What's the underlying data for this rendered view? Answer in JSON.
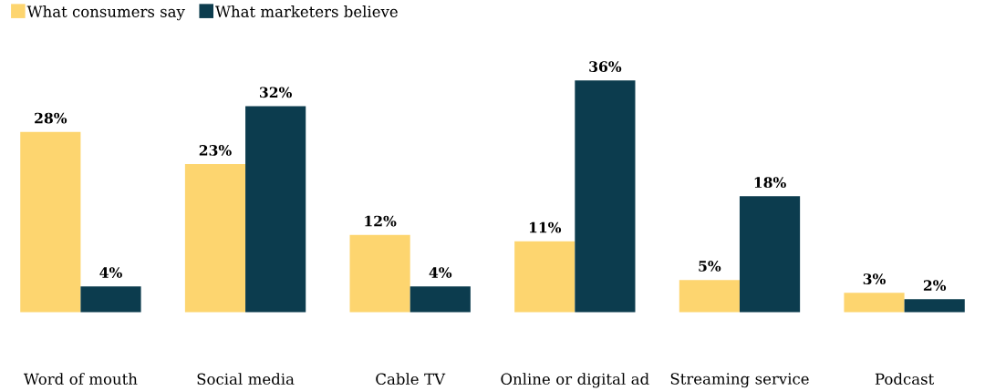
{
  "chart_data": {
    "type": "bar",
    "categories": [
      "Word of mouth",
      "Social media",
      "Cable TV",
      "Online or digital ad",
      "Streaming service",
      "Podcast"
    ],
    "series": [
      {
        "name": "What consumers say",
        "color": "#fdd56f",
        "values": [
          28,
          23,
          12,
          11,
          5,
          3
        ],
        "value_labels": [
          "28%",
          "23%",
          "12%",
          "11%",
          "5%",
          "3%"
        ]
      },
      {
        "name": "What marketers believe",
        "color": "#0c3c4e",
        "values": [
          4,
          32,
          4,
          36,
          18,
          2
        ],
        "value_labels": [
          "4%",
          "32%",
          "4%",
          "36%",
          "18%",
          "2%"
        ]
      }
    ],
    "legend": "top left"
  }
}
